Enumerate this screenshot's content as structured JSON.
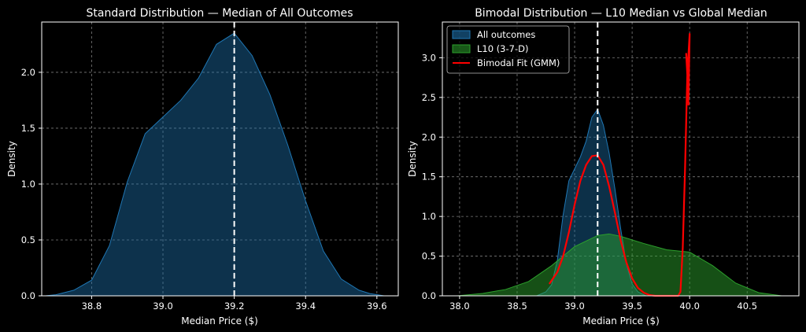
{
  "chart_data": [
    {
      "type": "area",
      "title": "Standard Distribution — Median of All Outcomes",
      "xlabel": "Median Price ($)",
      "ylabel": "Density",
      "xlim": [
        38.66,
        39.66
      ],
      "ylim": [
        0,
        2.45
      ],
      "xticks": [
        "38.8",
        "39.0",
        "39.2",
        "39.4",
        "39.6"
      ],
      "yticks": [
        "0.0",
        "0.5",
        "1.0",
        "1.5",
        "2.0"
      ],
      "grid": true,
      "median_line": 39.2,
      "series": [
        {
          "name": "All outcomes",
          "color": "#1f77b4",
          "x": [
            38.67,
            38.7,
            38.75,
            38.8,
            38.85,
            38.9,
            38.95,
            39.0,
            39.05,
            39.1,
            39.15,
            39.2,
            39.25,
            39.3,
            39.35,
            39.4,
            39.45,
            39.5,
            39.55,
            39.58,
            39.62
          ],
          "y": [
            0.0,
            0.01,
            0.05,
            0.14,
            0.45,
            1.02,
            1.45,
            1.6,
            1.75,
            1.95,
            2.25,
            2.35,
            2.15,
            1.8,
            1.35,
            0.85,
            0.4,
            0.15,
            0.05,
            0.02,
            0.0
          ]
        }
      ]
    },
    {
      "type": "area",
      "title": "Bimodal Distribution — L10 Median vs Global Median",
      "xlabel": "Median Price ($)",
      "ylabel": "Density",
      "xlim": [
        37.85,
        40.95
      ],
      "ylim": [
        0,
        3.45
      ],
      "xticks": [
        "38.0",
        "38.5",
        "39.0",
        "39.5",
        "40.0",
        "40.5"
      ],
      "yticks": [
        "0.0",
        "0.5",
        "1.0",
        "1.5",
        "2.0",
        "2.5",
        "3.0"
      ],
      "grid": true,
      "median_line": 39.2,
      "legend_position": "top-left",
      "series": [
        {
          "name": "All outcomes",
          "color": "#1f77b4",
          "x": [
            38.67,
            38.75,
            38.8,
            38.85,
            38.9,
            38.95,
            39.0,
            39.05,
            39.1,
            39.15,
            39.2,
            39.25,
            39.3,
            39.35,
            39.4,
            39.45,
            39.5,
            39.55,
            39.62
          ],
          "y": [
            0.0,
            0.05,
            0.14,
            0.45,
            1.02,
            1.45,
            1.6,
            1.75,
            1.95,
            2.25,
            2.35,
            2.15,
            1.8,
            1.35,
            0.85,
            0.4,
            0.15,
            0.05,
            0.0
          ]
        },
        {
          "name": "L10 (3-7-D)",
          "color": "#2ca02c",
          "x": [
            37.98,
            38.2,
            38.4,
            38.6,
            38.8,
            39.0,
            39.2,
            39.3,
            39.4,
            39.6,
            39.8,
            40.0,
            40.2,
            40.4,
            40.6,
            40.8
          ],
          "y": [
            0.0,
            0.03,
            0.08,
            0.18,
            0.38,
            0.62,
            0.76,
            0.78,
            0.75,
            0.66,
            0.58,
            0.55,
            0.38,
            0.16,
            0.04,
            0.0
          ]
        },
        {
          "name": "Bimodal Fit (GMM)",
          "color": "#ff0000",
          "x": [
            38.78,
            38.85,
            38.9,
            38.95,
            39.0,
            39.05,
            39.1,
            39.15,
            39.2,
            39.25,
            39.3,
            39.35,
            39.4,
            39.45,
            39.5,
            39.55,
            39.6,
            39.65,
            39.7,
            39.75,
            39.8,
            39.85,
            39.9,
            39.92,
            39.94,
            39.96,
            39.98,
            40.0,
            39.99,
            39.97,
            39.98,
            39.99
          ],
          "y": [
            0.15,
            0.3,
            0.5,
            0.8,
            1.15,
            1.45,
            1.65,
            1.76,
            1.77,
            1.65,
            1.38,
            1.05,
            0.7,
            0.42,
            0.22,
            0.1,
            0.04,
            0.01,
            0.0,
            0.0,
            0.0,
            0.0,
            0.0,
            0.05,
            0.6,
            1.6,
            2.8,
            3.3,
            2.5,
            3.05,
            2.85,
            2.4
          ]
        }
      ]
    }
  ]
}
